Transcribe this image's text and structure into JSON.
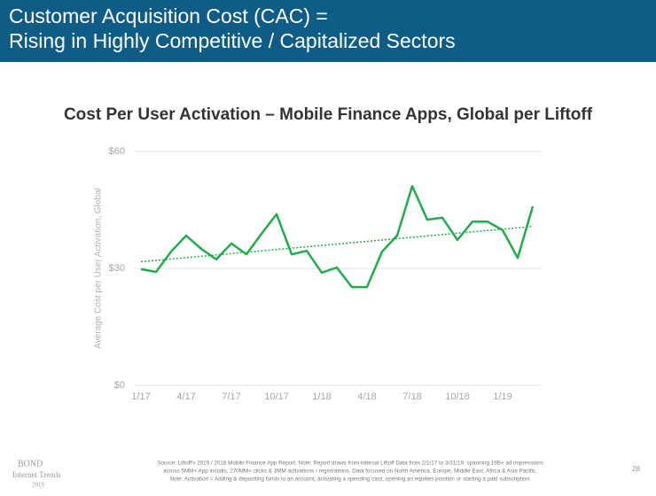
{
  "header": {
    "title": [
      "Customer Acquisition Cost (CAC) =",
      "Rising in Highly Competitive / Capitalized Sectors"
    ]
  },
  "chart_data": {
    "type": "line",
    "title": "Cost Per User Activation – Mobile Finance Apps, Global per Liftoff",
    "y_label": "Average Cost per User Activation, Global",
    "categories": [
      "1/17",
      null,
      null,
      "4/17",
      null,
      null,
      "7/17",
      null,
      null,
      "10/17",
      null,
      null,
      "1/18",
      null,
      null,
      "4/18",
      null,
      null,
      "7/18",
      null,
      null,
      "10/18",
      null,
      null,
      "1/19",
      null,
      null
    ],
    "values": [
      29.8,
      29.1,
      34.3,
      38.4,
      35,
      32.3,
      36.4,
      33.6,
      38.9,
      43.9,
      33.6,
      34.5,
      28.9,
      30.2,
      25.2,
      25.2,
      34.3,
      38.4,
      51.1,
      42.5,
      43,
      37.3,
      42,
      42,
      39.8,
      32.7,
      45.9
    ],
    "color": "#1fad4c",
    "trendline": true,
    "ylim": [
      0,
      60
    ],
    "yticks": [
      {
        "value": 0,
        "label": "$0"
      },
      {
        "value": 30,
        "label": "$30"
      },
      {
        "value": 60,
        "label": "$60"
      }
    ],
    "grid": true
  },
  "footer": {
    "source": [
      "Source: Liftoff's 2019 / 2018 Mobile Finance App Report. Note: Report draws from internal Liftoff Data from 2/1/17 to 3/31/19, spanning 19B+ ad impressions",
      "across 5MM+ App installs, 270MM+ clicks & 3MM activations / registrations. Data focused on North America, Europe, Middle East, Africa & Asia Pacific.",
      "Note: Activation = Adding & depositing funds to an account, activating a spending card, opening an equities position or starting a paid subscription."
    ],
    "logo": [
      "BOND",
      "Internet Trends",
      "2019"
    ],
    "page": "28"
  }
}
